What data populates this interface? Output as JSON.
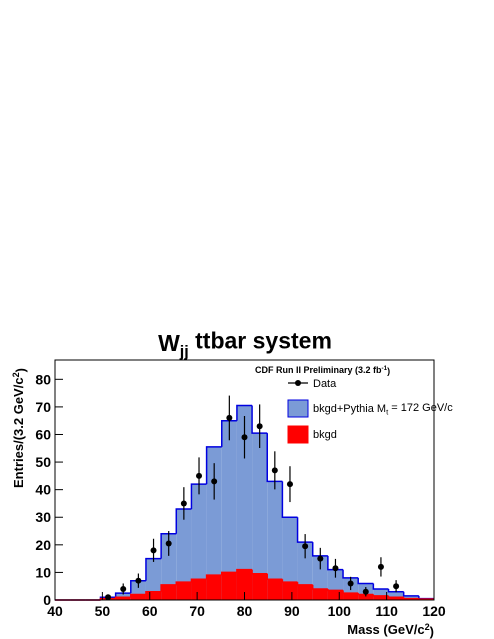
{
  "chart_data": {
    "type": "histogram",
    "title": [
      {
        "text": "W"
      },
      {
        "text": "jj",
        "script": "sub"
      },
      {
        "text": " ttbar system"
      }
    ],
    "xlabel": [
      {
        "text": "Mass (GeV/c"
      },
      {
        "text": "2",
        "script": "sup"
      },
      {
        "text": ")"
      }
    ],
    "ylabel": [
      {
        "text": "Entries/(3.2 GeV/c"
      },
      {
        "text": "2",
        "script": "sup"
      },
      {
        "text": ")"
      }
    ],
    "legend_title": [
      {
        "text": "CDF Run II Preliminary (3.2 fb"
      },
      {
        "text": "-1",
        "script": "sup"
      },
      {
        "text": ")"
      }
    ],
    "bins": [
      40,
      43.2,
      46.4,
      49.6,
      52.8,
      56,
      59.2,
      62.4,
      65.6,
      68.8,
      72,
      75.2,
      78.4,
      81.6,
      84.8,
      88,
      91.2,
      94.4,
      97.6,
      100.8,
      104,
      107.2,
      110.4,
      113.6,
      116.8,
      120
    ],
    "series": [
      {
        "name": [
          {
            "text": "bkgd+Pythia M"
          },
          {
            "text": "t",
            "script": "sub"
          },
          {
            "text": " = 172 GeV/c"
          }
        ],
        "color": "#7b9bd6",
        "outline": "#0000e0",
        "values": [
          0,
          0,
          0,
          1,
          2.5,
          7,
          15,
          24,
          33,
          42,
          55.5,
          65,
          70.5,
          60.5,
          43,
          30,
          21,
          16,
          11,
          8,
          6,
          4,
          3,
          1.5,
          0.5
        ]
      },
      {
        "name": "bkgd",
        "color": "#ff0000",
        "outline": "#ff0000",
        "values": [
          0,
          0,
          0,
          0.5,
          1,
          2,
          3,
          5.5,
          6.5,
          7.5,
          9,
          10,
          11,
          9.5,
          7.5,
          6.5,
          5.5,
          4,
          3.5,
          2.5,
          2,
          1.5,
          1,
          0.5,
          0.3
        ]
      }
    ],
    "points": {
      "name": "Data",
      "color": "#000000",
      "x": [
        51.2,
        54.4,
        57.6,
        60.8,
        64,
        67.2,
        70.4,
        73.6,
        76.8,
        80,
        83.2,
        86.4,
        89.6,
        92.8,
        96,
        99.2,
        102.4,
        105.6,
        108.8,
        112
      ],
      "values": [
        1,
        4,
        7,
        18,
        20.5,
        35,
        45,
        43,
        66,
        59,
        63,
        47,
        42,
        19.5,
        15,
        11.5,
        6,
        3,
        12,
        5
      ],
      "errors": [
        1,
        2,
        2.6,
        4.2,
        4.5,
        5.9,
        6.7,
        6.6,
        8.1,
        7.7,
        7.9,
        6.9,
        6.5,
        4.4,
        3.9,
        3.4,
        2.4,
        1.7,
        3.5,
        2.2
      ]
    },
    "xlim": [
      40,
      120
    ],
    "ylim": [
      0,
      87
    ],
    "xticks": [
      40,
      50,
      60,
      70,
      80,
      90,
      100,
      110,
      120
    ],
    "yticks": [
      0,
      10,
      20,
      30,
      40,
      50,
      60,
      70,
      80
    ]
  }
}
